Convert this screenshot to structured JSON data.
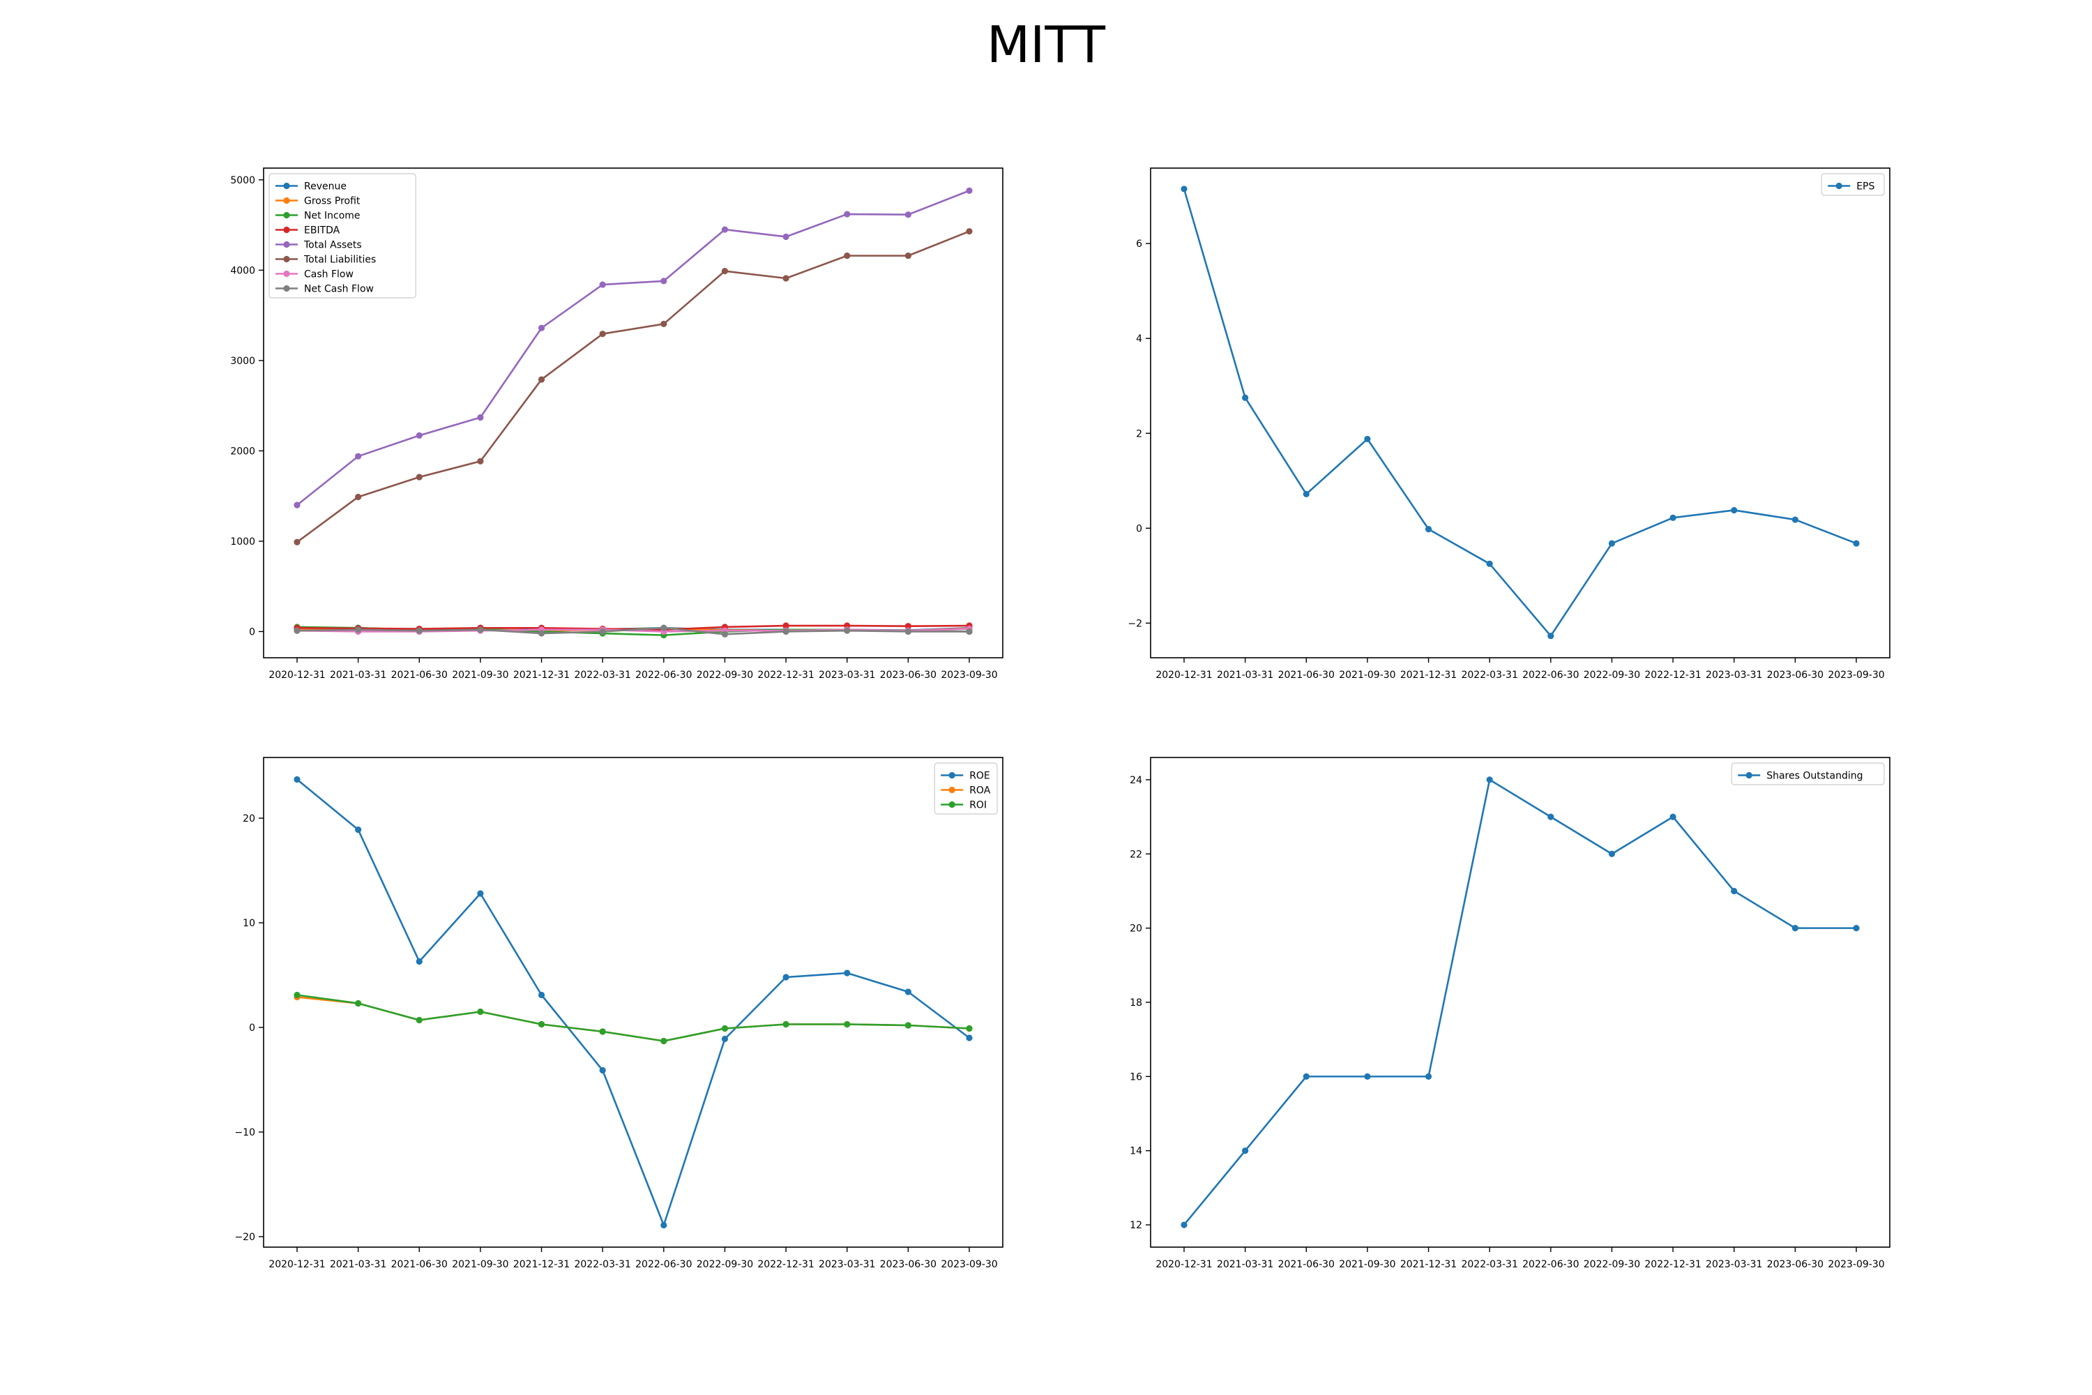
{
  "figure": {
    "title": "MITT"
  },
  "chart_data": [
    {
      "type": "line",
      "title": "",
      "xlabel": "",
      "ylabel": "",
      "categories": [
        "2020-12-31",
        "2021-03-31",
        "2021-06-30",
        "2021-09-30",
        "2021-12-31",
        "2022-03-31",
        "2022-06-30",
        "2022-09-30",
        "2022-12-31",
        "2023-03-31",
        "2023-06-30",
        "2023-09-30"
      ],
      "ylim": [
        -290,
        5130
      ],
      "yticks": [
        0,
        1000,
        2000,
        3000,
        4000,
        5000
      ],
      "yticklabels": [
        "0",
        "1000",
        "2000",
        "3000",
        "4000",
        "5000"
      ],
      "legend": "upper left",
      "series": [
        {
          "name": "Revenue",
          "color": "#1f77b4",
          "values": [
            35,
            40,
            20,
            40,
            15,
            25,
            40,
            20,
            20,
            20,
            15,
            40
          ]
        },
        {
          "name": "Gross Profit",
          "color": "#ff7f0e",
          "values": [
            30,
            35,
            15,
            35,
            10,
            20,
            35,
            15,
            15,
            15,
            10,
            35
          ]
        },
        {
          "name": "Net Income",
          "color": "#2ca02c",
          "values": [
            50,
            40,
            20,
            30,
            0,
            -20,
            -40,
            0,
            20,
            20,
            10,
            0
          ]
        },
        {
          "name": "EBITDA",
          "color": "#d62728",
          "values": [
            40,
            35,
            30,
            40,
            40,
            30,
            20,
            50,
            65,
            65,
            60,
            65
          ]
        },
        {
          "name": "Total Assets",
          "color": "#9467bd",
          "values": [
            1400,
            1940,
            2170,
            2370,
            3360,
            3840,
            3880,
            4450,
            4370,
            4620,
            4615,
            4880
          ]
        },
        {
          "name": "Total Liabilities",
          "color": "#8c564b",
          "values": [
            990,
            1490,
            1710,
            1885,
            2790,
            3295,
            3405,
            3990,
            3910,
            4160,
            4160,
            4430
          ]
        },
        {
          "name": "Cash Flow",
          "color": "#e377c2",
          "values": [
            10,
            0,
            0,
            10,
            20,
            20,
            0,
            10,
            10,
            20,
            10,
            30
          ]
        },
        {
          "name": "Net Cash Flow",
          "color": "#7f7f7f",
          "values": [
            10,
            20,
            10,
            20,
            -20,
            0,
            40,
            -30,
            0,
            10,
            0,
            0
          ]
        }
      ]
    },
    {
      "type": "line",
      "title": "",
      "xlabel": "",
      "ylabel": "",
      "categories": [
        "2020-12-31",
        "2021-03-31",
        "2021-06-30",
        "2021-09-30",
        "2021-12-31",
        "2022-03-31",
        "2022-06-30",
        "2022-09-30",
        "2022-12-31",
        "2023-03-31",
        "2023-06-30",
        "2023-09-30"
      ],
      "ylim": [
        -2.73,
        7.59
      ],
      "yticks": [
        -2,
        0,
        2,
        4,
        6
      ],
      "yticklabels": [
        "−2",
        "0",
        "2",
        "4",
        "6"
      ],
      "legend": "upper right",
      "series": [
        {
          "name": "EPS",
          "color": "#1f77b4",
          "values": [
            7.15,
            2.75,
            0.72,
            1.88,
            -0.02,
            -0.75,
            -2.27,
            -0.32,
            0.22,
            0.38,
            0.18,
            -0.32
          ]
        }
      ]
    },
    {
      "type": "line",
      "title": "",
      "xlabel": "",
      "ylabel": "",
      "categories": [
        "2020-12-31",
        "2021-03-31",
        "2021-06-30",
        "2021-09-30",
        "2021-12-31",
        "2022-03-31",
        "2022-06-30",
        "2022-09-30",
        "2022-12-31",
        "2023-03-31",
        "2023-06-30",
        "2023-09-30"
      ],
      "ylim": [
        -21.0,
        25.8
      ],
      "yticks": [
        -20,
        -10,
        0,
        10,
        20
      ],
      "yticklabels": [
        "−20",
        "−10",
        "0",
        "10",
        "20"
      ],
      "legend": "upper right",
      "series": [
        {
          "name": "ROE",
          "color": "#1f77b4",
          "values": [
            23.7,
            18.9,
            6.3,
            12.8,
            3.1,
            -4.1,
            -18.9,
            -1.1,
            4.8,
            5.2,
            3.4,
            -1.0
          ]
        },
        {
          "name": "ROA",
          "color": "#ff7f0e",
          "values": [
            2.9,
            2.3,
            0.7,
            1.5,
            0.3,
            -0.4,
            -1.3,
            -0.1,
            0.3,
            0.3,
            0.2,
            -0.1
          ]
        },
        {
          "name": "ROI",
          "color": "#2ca02c",
          "values": [
            3.1,
            2.3,
            0.7,
            1.5,
            0.3,
            -0.4,
            -1.3,
            -0.1,
            0.3,
            0.3,
            0.2,
            -0.1
          ]
        }
      ]
    },
    {
      "type": "line",
      "title": "",
      "xlabel": "",
      "ylabel": "",
      "categories": [
        "2020-12-31",
        "2021-03-31",
        "2021-06-30",
        "2021-09-30",
        "2021-12-31",
        "2022-03-31",
        "2022-06-30",
        "2022-09-30",
        "2022-12-31",
        "2023-03-31",
        "2023-06-30",
        "2023-09-30"
      ],
      "ylim": [
        11.4,
        24.6
      ],
      "yticks": [
        12,
        14,
        16,
        18,
        20,
        22,
        24
      ],
      "yticklabels": [
        "12",
        "14",
        "16",
        "18",
        "20",
        "22",
        "24"
      ],
      "legend": "upper right",
      "series": [
        {
          "name": "Shares Outstanding",
          "color": "#1f77b4",
          "values": [
            12,
            14,
            16,
            16,
            16,
            24,
            23,
            22,
            23,
            21,
            20,
            20
          ]
        }
      ]
    }
  ]
}
